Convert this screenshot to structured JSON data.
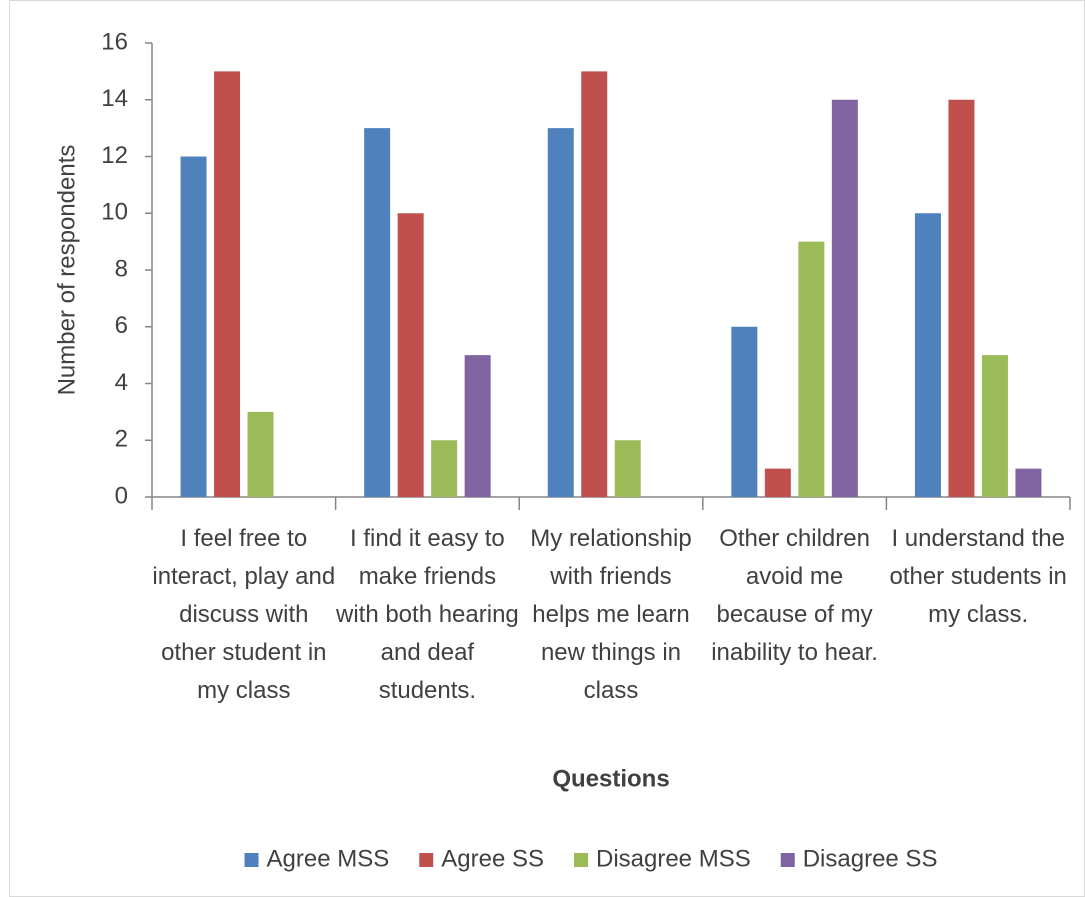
{
  "chart_data": {
    "type": "bar",
    "categories": [
      "I feel free to interact, play and discuss with other student in my class",
      "I find it easy to make friends with both hearing and deaf students.",
      "My relationship with friends helps me learn new things in class",
      "Other children avoid me because of my inability to hear.",
      "I understand the other students in my class."
    ],
    "series": [
      {
        "name": "Agree MSS",
        "color": "#4f81bd",
        "values": [
          12,
          13,
          13,
          6,
          10
        ]
      },
      {
        "name": "Agree SS",
        "color": "#c0504d",
        "values": [
          15,
          10,
          15,
          1,
          14
        ]
      },
      {
        "name": "Disagree MSS",
        "color": "#9bbb59",
        "values": [
          3,
          2,
          2,
          9,
          5
        ]
      },
      {
        "name": "Disagree SS",
        "color": "#8064a2",
        "values": [
          0,
          5,
          0,
          14,
          1
        ]
      }
    ],
    "x_label": "Questions",
    "y_label": "Number of respondents",
    "ylim": [
      0,
      16
    ],
    "yticks": [
      0,
      2,
      4,
      6,
      8,
      10,
      12,
      14,
      16
    ],
    "grid": false,
    "legend": "bottom"
  }
}
